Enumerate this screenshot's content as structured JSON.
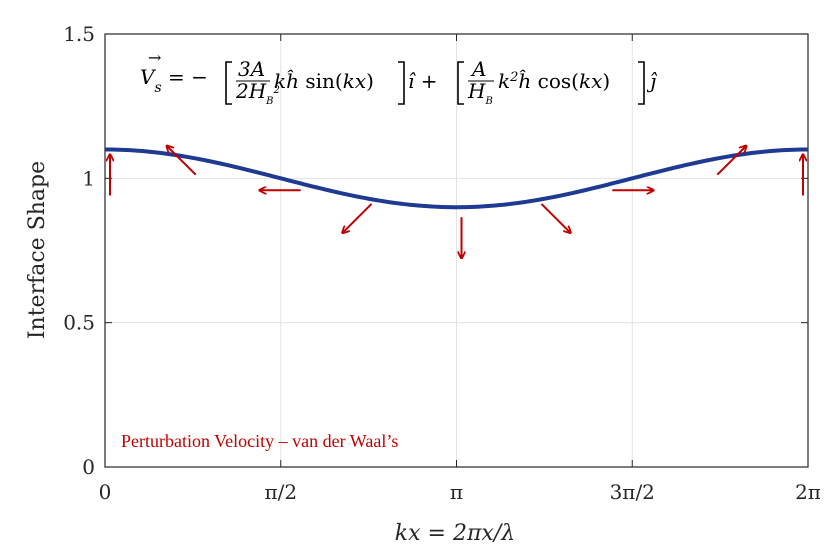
{
  "chart_data": {
    "type": "line",
    "xlabel": "kx = 2πx/λ",
    "ylabel": "Interface Shape",
    "xlim": [
      0,
      6.283185307
    ],
    "ylim": [
      0,
      1.5
    ],
    "grid": true,
    "x_ticks": [
      {
        "value": 0,
        "label": "0"
      },
      {
        "value": 1.570796327,
        "label": "π/2"
      },
      {
        "value": 3.141592654,
        "label": "π"
      },
      {
        "value": 4.71238898,
        "label": "3π/2"
      },
      {
        "value": 6.283185307,
        "label": "2π"
      }
    ],
    "y_ticks": [
      {
        "value": 0,
        "label": "0"
      },
      {
        "value": 0.5,
        "label": "0.5"
      },
      {
        "value": 1,
        "label": "1"
      },
      {
        "value": 1.5,
        "label": "1.5"
      }
    ],
    "series": [
      {
        "function": "1 + 0.1 cos(kx)",
        "mean": 1.0,
        "amplitude": 0.1,
        "color": "#1f3a93"
      }
    ],
    "arrows": {
      "color": "#c00000",
      "positions_kx": [
        0,
        0.785398,
        1.570796,
        2.356194,
        3.141593,
        3.926991,
        4.712389,
        5.497787,
        6.283185
      ],
      "vx": [
        0,
        -0.707,
        -1,
        -0.707,
        0,
        0.707,
        1,
        0.707,
        0
      ],
      "vy": [
        1,
        0.707,
        0,
        -0.707,
        -1,
        -0.707,
        0,
        0.707,
        1
      ]
    },
    "annotations": [
      {
        "text": "Perturbation Velocity – van der Waal’s",
        "color": "#c00000"
      },
      {
        "text": "V⃗s = −[3A/(2H_B²) k ĥ sin(kx)] î + [A/H_B k² ĥ cos(kx)] ĵ"
      }
    ]
  }
}
